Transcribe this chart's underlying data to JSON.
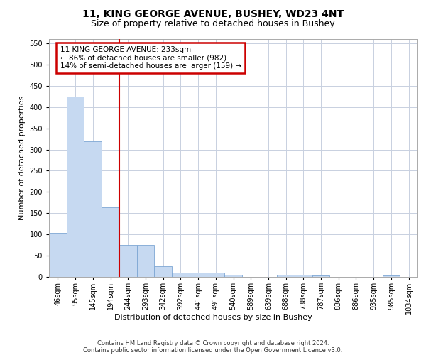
{
  "title_line1": "11, KING GEORGE AVENUE, BUSHEY, WD23 4NT",
  "title_line2": "Size of property relative to detached houses in Bushey",
  "xlabel": "Distribution of detached houses by size in Bushey",
  "ylabel": "Number of detached properties",
  "footer_line1": "Contains HM Land Registry data © Crown copyright and database right 2024.",
  "footer_line2": "Contains public sector information licensed under the Open Government Licence v3.0.",
  "annotation_line1": "11 KING GEORGE AVENUE: 233sqm",
  "annotation_line2": "← 86% of detached houses are smaller (982)",
  "annotation_line3": "14% of semi-detached houses are larger (159) →",
  "bar_labels": [
    "46sqm",
    "95sqm",
    "145sqm",
    "194sqm",
    "244sqm",
    "293sqm",
    "342sqm",
    "392sqm",
    "441sqm",
    "491sqm",
    "540sqm",
    "589sqm",
    "639sqm",
    "688sqm",
    "738sqm",
    "787sqm",
    "836sqm",
    "886sqm",
    "935sqm",
    "985sqm",
    "1034sqm"
  ],
  "bar_values": [
    103,
    425,
    320,
    163,
    75,
    75,
    25,
    10,
    10,
    10,
    5,
    0,
    0,
    5,
    5,
    3,
    0,
    0,
    0,
    3,
    0
  ],
  "bar_color": "#c6d9f1",
  "bar_edge_color": "#7da6d4",
  "vline_x": 4,
  "vline_color": "#cc0000",
  "ylim": [
    0,
    560
  ],
  "yticks": [
    0,
    50,
    100,
    150,
    200,
    250,
    300,
    350,
    400,
    450,
    500,
    550
  ],
  "bg_color": "#ffffff",
  "grid_color": "#c8d0e0",
  "annotation_box_color": "#cc0000",
  "title1_fontsize": 10,
  "title2_fontsize": 9,
  "ylabel_fontsize": 8,
  "xlabel_fontsize": 8,
  "tick_fontsize": 7,
  "footer_fontsize": 6,
  "ann_fontsize": 7.5
}
